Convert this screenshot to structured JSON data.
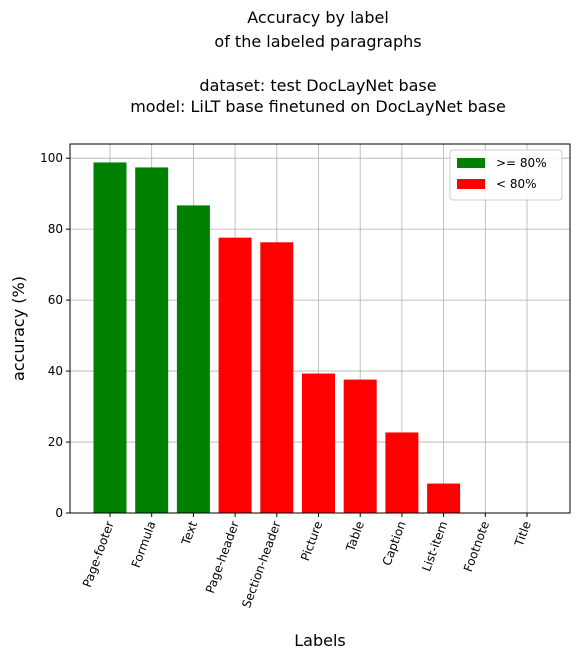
{
  "chart_data": {
    "type": "bar",
    "title_lines": [
      "Accuracy by label",
      "of the labeled paragraphs",
      "",
      "dataset: test DocLayNet base",
      "model: LiLT base finetuned on DocLayNet base"
    ],
    "xlabel": "Labels",
    "ylabel": "accuracy (%)",
    "categories": [
      "Page-footer",
      "Formula",
      "Text",
      "Page-header",
      "Section-header",
      "Picture",
      "Table",
      "Caption",
      "List-item",
      "Footnote",
      "Title"
    ],
    "values": [
      98.8,
      97.4,
      86.7,
      77.6,
      76.3,
      39.3,
      37.6,
      22.7,
      8.3,
      0,
      0
    ],
    "ylim": [
      0,
      104
    ],
    "yticks": [
      0,
      20,
      40,
      60,
      80,
      100
    ],
    "grid": true,
    "threshold": 80,
    "colors": {
      "above": "#008000",
      "below": "#ff0000"
    },
    "legend": {
      "placement": "top-right",
      "entries": [
        {
          "label": ">= 80%",
          "color": "#008000"
        },
        {
          "label": "< 80%",
          "color": "#ff0000"
        }
      ]
    }
  }
}
